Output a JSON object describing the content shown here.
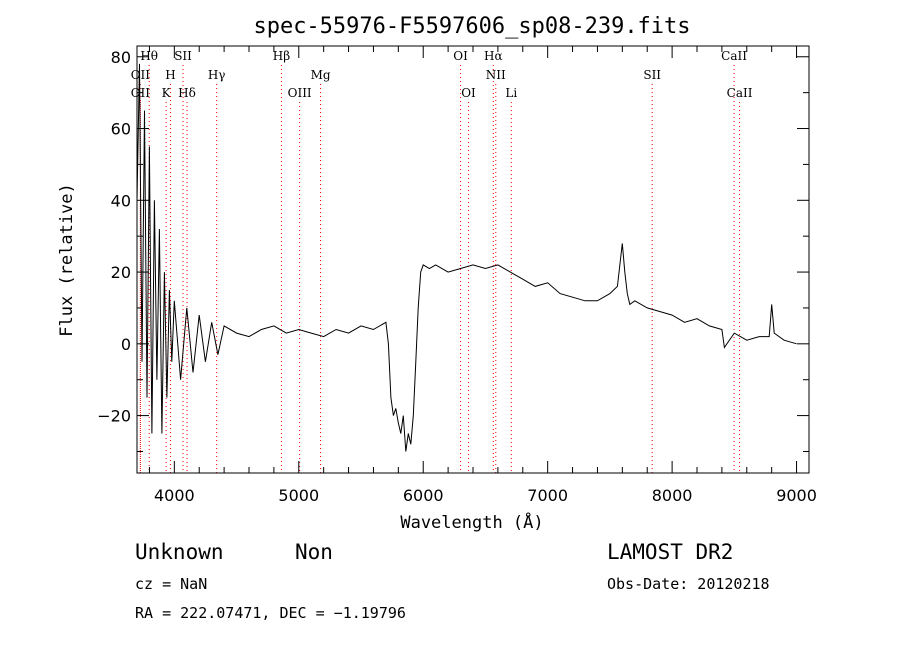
{
  "chart_data": {
    "type": "line",
    "title": "spec-55976-F5597606_sp08-239.fits",
    "xlabel": "Wavelength (Å)",
    "ylabel": "Flux (relative)",
    "xlim": [
      3700,
      9100
    ],
    "ylim": [
      -36,
      83
    ],
    "xticks": [
      4000,
      5000,
      6000,
      7000,
      8000,
      9000
    ],
    "yticks": [
      -20,
      0,
      20,
      40,
      60,
      80
    ],
    "grid": false,
    "line_color": "#000000",
    "marker_color": "#ff0000",
    "spectral_lines": [
      {
        "label": "OII",
        "wavelength": 3727,
        "row": 2
      },
      {
        "label": "Hθ",
        "wavelength": 3798,
        "row": 0
      },
      {
        "label": "OII",
        "wavelength": 3727,
        "row": 1
      },
      {
        "label": "K",
        "wavelength": 3934,
        "row": 2
      },
      {
        "label": "H",
        "wavelength": 3969,
        "row": 1
      },
      {
        "label": "SII",
        "wavelength": 4070,
        "row": 0
      },
      {
        "label": "Hδ",
        "wavelength": 4102,
        "row": 2
      },
      {
        "label": "Hγ",
        "wavelength": 4340,
        "row": 1
      },
      {
        "label": "Hβ",
        "wavelength": 4861,
        "row": 0
      },
      {
        "label": "OIII",
        "wavelength": 5007,
        "row": 2
      },
      {
        "label": "Mg",
        "wavelength": 5175,
        "row": 1
      },
      {
        "label": "OI",
        "wavelength": 6300,
        "row": 0
      },
      {
        "label": "OI",
        "wavelength": 6364,
        "row": 2
      },
      {
        "label": "Hα",
        "wavelength": 6563,
        "row": 0
      },
      {
        "label": "NII",
        "wavelength": 6583,
        "row": 1
      },
      {
        "label": "Li",
        "wavelength": 6708,
        "row": 2
      },
      {
        "label": "SII",
        "wavelength": 7840,
        "row": 1
      },
      {
        "label": "CaII",
        "wavelength": 8498,
        "row": 0
      },
      {
        "label": "CaII",
        "wavelength": 8542,
        "row": 2
      }
    ],
    "series": [
      {
        "x": [
          3700,
          3720,
          3740,
          3760,
          3780,
          3800,
          3820,
          3840,
          3860,
          3880,
          3900,
          3920,
          3940,
          3960,
          3980,
          4000,
          4050,
          4100,
          4150,
          4200,
          4250,
          4300,
          4350,
          4400,
          4500,
          4600,
          4700,
          4800,
          4900,
          5000,
          5100,
          5200,
          5300,
          5400,
          5500,
          5600,
          5700,
          5720,
          5740,
          5760,
          5780,
          5800,
          5820,
          5840,
          5860,
          5880,
          5900,
          5920,
          5940,
          5960,
          5980,
          6000,
          6050,
          6100,
          6200,
          6300,
          6400,
          6500,
          6600,
          6700,
          6800,
          6900,
          7000,
          7100,
          7200,
          7300,
          7400,
          7500,
          7560,
          7600,
          7620,
          7640,
          7660,
          7700,
          7800,
          7900,
          8000,
          8100,
          8200,
          8300,
          8400,
          8420,
          8500,
          8600,
          8700,
          8780,
          8800,
          8820,
          8900,
          9000
        ],
        "y": [
          40,
          78,
          -5,
          65,
          -15,
          55,
          -25,
          40,
          -10,
          32,
          -25,
          20,
          -15,
          15,
          -5,
          12,
          -10,
          10,
          -8,
          8,
          -5,
          6,
          -3,
          5,
          3,
          2,
          4,
          5,
          3,
          4,
          3,
          2,
          4,
          3,
          5,
          4,
          6,
          0,
          -15,
          -20,
          -18,
          -22,
          -25,
          -20,
          -30,
          -25,
          -28,
          -20,
          -5,
          10,
          20,
          22,
          21,
          22,
          20,
          21,
          22,
          21,
          22,
          20,
          18,
          16,
          17,
          14,
          13,
          12,
          12,
          14,
          16,
          28,
          20,
          14,
          11,
          12,
          10,
          9,
          8,
          6,
          7,
          5,
          4,
          -1,
          3,
          1,
          2,
          2,
          11,
          3,
          1,
          0
        ]
      }
    ]
  },
  "info": {
    "class": "Unknown",
    "subclass": "Non",
    "survey": "LAMOST DR2",
    "cz": "cz = NaN",
    "obs_date": "Obs-Date: 20120218",
    "coords": "RA = 222.07471, DEC =  −1.19796"
  }
}
